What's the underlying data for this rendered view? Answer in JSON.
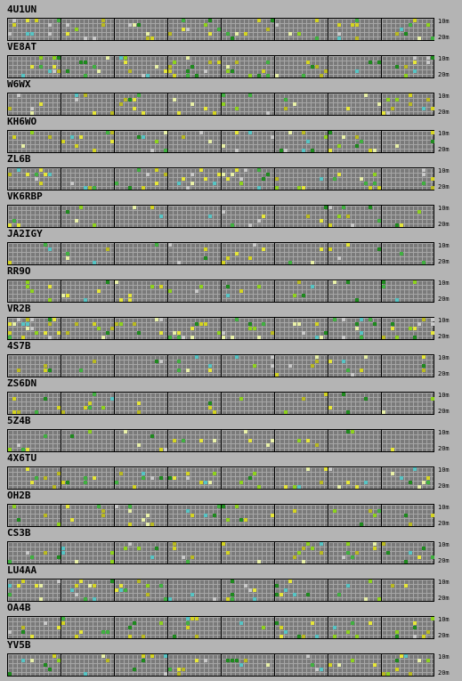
{
  "band_labels": {
    "top": "10m",
    "bottom": "20m"
  },
  "hours": 8,
  "colors": [
    "#b9b921",
    "#d4d422",
    "#e6e63a",
    "#56c4c4",
    "#40b040",
    "#8ed21e",
    "#c8c8c8",
    "#e8f0a8",
    "#1e8a1e"
  ],
  "stations": [
    {
      "call": "4U1UN",
      "density": 0.12,
      "seed": 11
    },
    {
      "call": "VE8AT",
      "density": 0.08,
      "seed": 23
    },
    {
      "call": "W6WX",
      "density": 0.09,
      "seed": 37
    },
    {
      "call": "KH6WO",
      "density": 0.1,
      "seed": 41
    },
    {
      "call": "ZL6B",
      "density": 0.1,
      "seed": 53
    },
    {
      "call": "VK6RBP",
      "density": 0.09,
      "seed": 61
    },
    {
      "call": "JA2IGY",
      "density": 0.07,
      "seed": 73
    },
    {
      "call": "RR9O",
      "density": 0.08,
      "seed": 89
    },
    {
      "call": "VR2B",
      "density": 0.16,
      "seed": 97
    },
    {
      "call": "4S7B",
      "density": 0.08,
      "seed": 101
    },
    {
      "call": "ZS6DN",
      "density": 0.07,
      "seed": 113
    },
    {
      "call": "5Z4B",
      "density": 0.06,
      "seed": 127
    },
    {
      "call": "4X6TU",
      "density": 0.09,
      "seed": 131
    },
    {
      "call": "OH2B",
      "density": 0.09,
      "seed": 149
    },
    {
      "call": "CS3B",
      "density": 0.09,
      "seed": 151
    },
    {
      "call": "LU4AA",
      "density": 0.1,
      "seed": 163
    },
    {
      "call": "OA4B",
      "density": 0.09,
      "seed": 173
    },
    {
      "call": "YV5B",
      "density": 0.08,
      "seed": 181
    }
  ]
}
